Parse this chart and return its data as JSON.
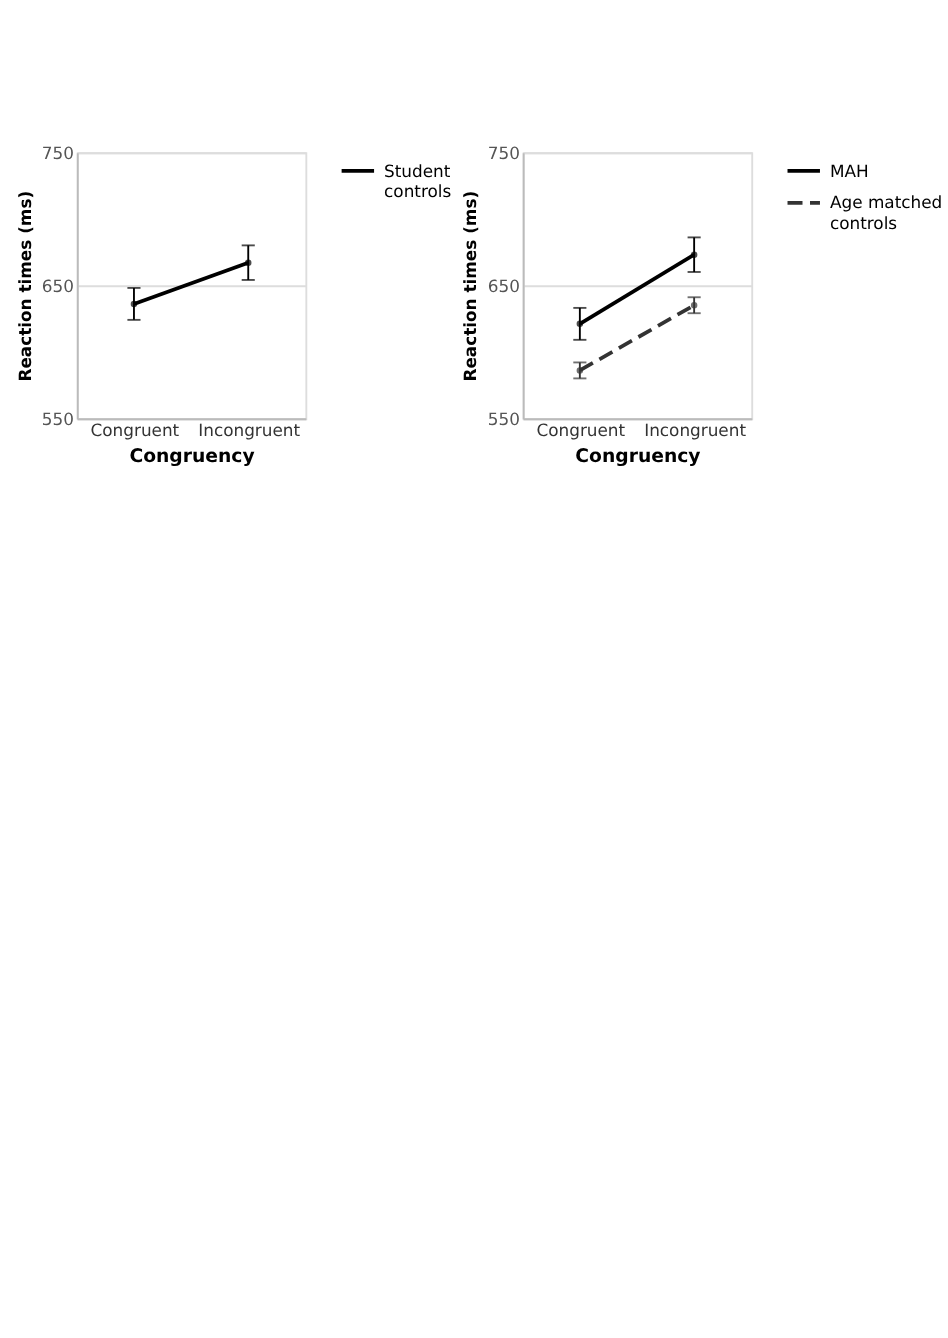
{
  "chart_data": [
    {
      "type": "line",
      "xlabel": "Congruency",
      "ylabel": "Reaction times (ms)",
      "categories": [
        "Congruent",
        "Incongruent"
      ],
      "ylim": [
        550,
        750
      ],
      "yticks": [
        550,
        650,
        750
      ],
      "grid": "y",
      "legend": "right",
      "marker": "circle",
      "series": [
        {
          "name": "Student controls",
          "color": "#000000",
          "line_style": "solid",
          "values": [
            636,
            667
          ],
          "errors": [
            12,
            13
          ]
        }
      ]
    },
    {
      "type": "line",
      "xlabel": "Congruency",
      "ylabel": "Reaction times (ms)",
      "categories": [
        "Congruent",
        "Incongruent"
      ],
      "ylim": [
        550,
        750
      ],
      "yticks": [
        550,
        650,
        750
      ],
      "grid": "y",
      "legend": "right",
      "marker": "circle",
      "series": [
        {
          "name": "MAH",
          "color": "#000000",
          "line_style": "solid",
          "values": [
            621,
            673
          ],
          "errors": [
            12,
            13
          ]
        },
        {
          "name": "Age matched controls",
          "color": "#333333",
          "line_style": "dashed",
          "values": [
            586,
            635
          ],
          "errors": [
            6,
            6
          ]
        }
      ]
    }
  ]
}
